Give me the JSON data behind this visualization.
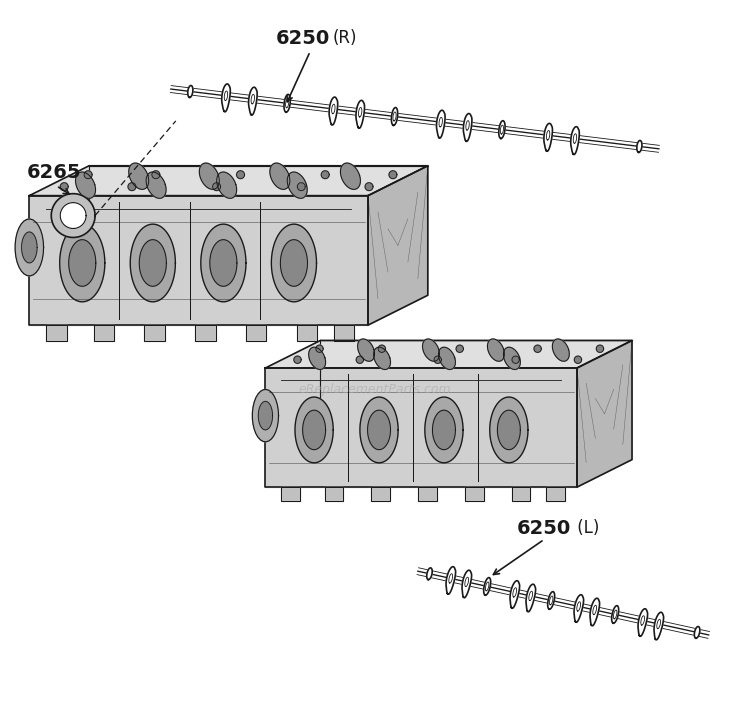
{
  "bg_color": "#ffffff",
  "line_color": "#1a1a1a",
  "label_6250R": "6250",
  "label_6250R_suffix": "(R)",
  "label_6250L": "6250",
  "label_6250L_suffix": " (L)",
  "label_6265": "6265",
  "watermark": "eReplacementParts.com",
  "figsize": [
    7.5,
    7.22
  ],
  "dpi": 100
}
